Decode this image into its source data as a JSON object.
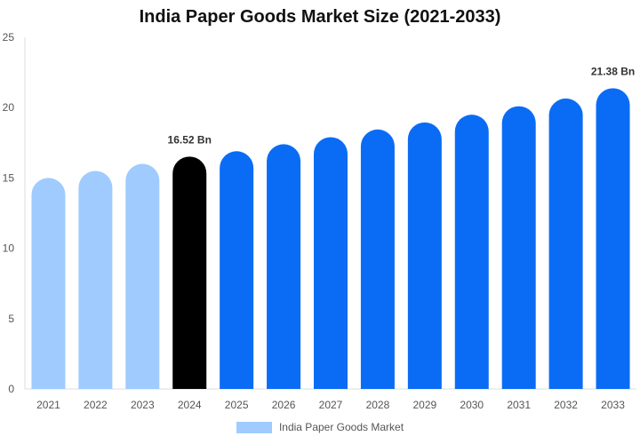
{
  "chart_data": {
    "type": "bar",
    "title": "India Paper Goods Market Size (2021-2033)",
    "categories": [
      "2021",
      "2022",
      "2023",
      "2024",
      "2025",
      "2026",
      "2027",
      "2028",
      "2029",
      "2030",
      "2031",
      "2032",
      "2033"
    ],
    "series": [
      {
        "name": "India Paper Goods Market",
        "values": [
          15.0,
          15.5,
          16.0,
          16.52,
          16.9,
          17.4,
          17.9,
          18.45,
          18.95,
          19.5,
          20.1,
          20.65,
          21.38
        ]
      }
    ],
    "data_labels": [
      {
        "category": "2024",
        "text": "16.52 Bn"
      },
      {
        "category": "2033",
        "text": "21.38 Bn"
      }
    ],
    "bar_colors": {
      "historical": "#9fcbff",
      "base_year": "#000000",
      "forecast": "#0a6cf5"
    },
    "historical_categories": [
      "2021",
      "2022",
      "2023"
    ],
    "base_year": "2024",
    "xlabel": "",
    "ylabel": "",
    "ylim": [
      0,
      25
    ],
    "yticks": [
      0,
      5,
      10,
      15,
      20,
      25
    ],
    "grid": false,
    "legend_position": "bottom",
    "legend_swatch_color": "#9fcbff"
  }
}
